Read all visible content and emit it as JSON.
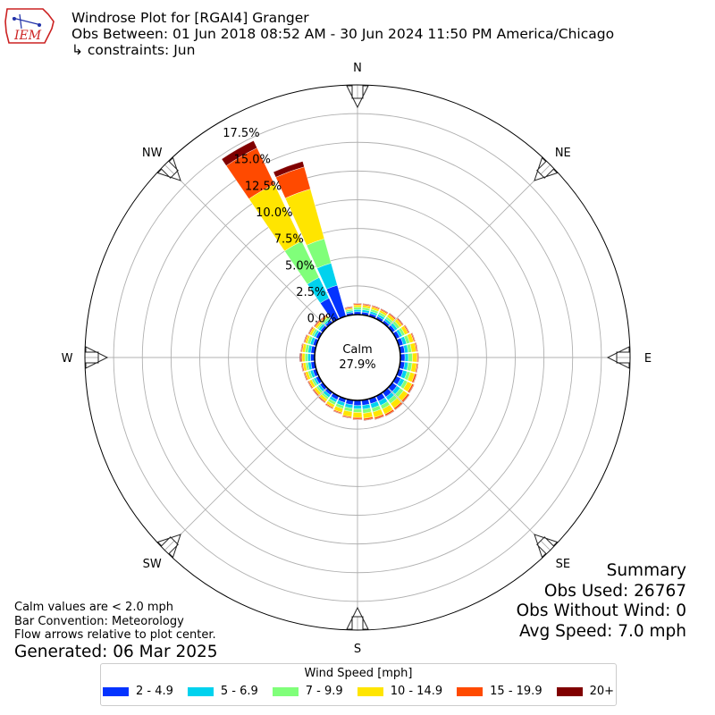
{
  "header": {
    "title_line1": "Windrose Plot for [RGAI4] Granger",
    "title_line2": "Obs Between: 01 Jun 2018 08:52 AM - 30 Jun 2024 11:50 PM America/Chicago",
    "title_line3": "↳ constraints: Jun",
    "logo_text": "IEM"
  },
  "summary": {
    "heading": "Summary",
    "obs_used": "Obs Used: 26767",
    "obs_without_wind": "Obs Without Wind: 0",
    "avg_speed": "Avg Speed: 7.0 mph"
  },
  "notes": {
    "calm_note": "Calm values are < 2.0 mph",
    "bar_convention": "Bar Convention: Meteorology",
    "flow_arrows": "Flow arrows relative to plot center.",
    "generated": "Generated: 06 Mar 2025"
  },
  "legend": {
    "title": "Wind Speed [mph]",
    "items": [
      {
        "label": "2 - 4.9",
        "color": "#0433ff"
      },
      {
        "label": "5 - 6.9",
        "color": "#00d2ee"
      },
      {
        "label": "7 - 9.9",
        "color": "#80ff7a"
      },
      {
        "label": "10 - 14.9",
        "color": "#ffe500"
      },
      {
        "label": "15 - 19.9",
        "color": "#ff4a00"
      },
      {
        "label": "20+",
        "color": "#800000"
      }
    ]
  },
  "chart_data": {
    "type": "windrose",
    "calm": {
      "label": "Calm",
      "value": "27.9%"
    },
    "directions": [
      {
        "label": "N",
        "deg": 0
      },
      {
        "label": "NE",
        "deg": 45
      },
      {
        "label": "E",
        "deg": 90
      },
      {
        "label": "SE",
        "deg": 135
      },
      {
        "label": "S",
        "deg": 180
      },
      {
        "label": "SW",
        "deg": 225
      },
      {
        "label": "W",
        "deg": 270
      },
      {
        "label": "NW",
        "deg": 315
      }
    ],
    "radial_ticks": [
      "0.0%",
      "2.5%",
      "5.0%",
      "7.5%",
      "10.0%",
      "12.5%",
      "15.0%",
      "17.5%"
    ],
    "radial_values": [
      0,
      2.5,
      5,
      7.5,
      10,
      12.5,
      15,
      17.5
    ],
    "rmax": 20,
    "bin_width_deg": 10,
    "bins": [
      "2 - 4.9",
      "5 - 6.9",
      "7 - 9.9",
      "10 - 14.9",
      "15 - 19.9",
      "20+"
    ],
    "colors": [
      "#0433ff",
      "#00d2ee",
      "#80ff7a",
      "#ffe500",
      "#ff4a00",
      "#800000"
    ],
    "sectors": [
      {
        "deg": 0,
        "cum": [
          0.25,
          0.45,
          0.65,
          0.85,
          0.95,
          1.0
        ]
      },
      {
        "deg": 10,
        "cum": [
          0.25,
          0.45,
          0.65,
          0.85,
          0.95,
          1.0
        ]
      },
      {
        "deg": 20,
        "cum": [
          0.25,
          0.45,
          0.65,
          0.85,
          0.95,
          1.0
        ]
      },
      {
        "deg": 30,
        "cum": [
          0.25,
          0.45,
          0.65,
          0.85,
          0.95,
          1.0
        ]
      },
      {
        "deg": 40,
        "cum": [
          0.25,
          0.45,
          0.65,
          0.9,
          1.0,
          1.05
        ]
      },
      {
        "deg": 50,
        "cum": [
          0.3,
          0.55,
          0.8,
          1.05,
          1.15,
          1.2
        ]
      },
      {
        "deg": 60,
        "cum": [
          0.35,
          0.6,
          0.85,
          1.15,
          1.25,
          1.3
        ]
      },
      {
        "deg": 70,
        "cum": [
          0.4,
          0.7,
          1.0,
          1.35,
          1.45,
          1.5
        ]
      },
      {
        "deg": 80,
        "cum": [
          0.4,
          0.7,
          1.0,
          1.4,
          1.5,
          1.55
        ]
      },
      {
        "deg": 90,
        "cum": [
          0.4,
          0.7,
          1.05,
          1.45,
          1.55,
          1.6
        ]
      },
      {
        "deg": 100,
        "cum": [
          0.4,
          0.7,
          1.05,
          1.45,
          1.55,
          1.6
        ]
      },
      {
        "deg": 110,
        "cum": [
          0.4,
          0.75,
          1.05,
          1.45,
          1.6,
          1.65
        ]
      },
      {
        "deg": 120,
        "cum": [
          0.45,
          0.8,
          1.1,
          1.55,
          1.7,
          1.75
        ]
      },
      {
        "deg": 130,
        "cum": [
          0.5,
          0.85,
          1.2,
          1.65,
          1.8,
          1.85
        ]
      },
      {
        "deg": 140,
        "cum": [
          0.5,
          0.85,
          1.2,
          1.7,
          1.85,
          1.9
        ]
      },
      {
        "deg": 150,
        "cum": [
          0.5,
          0.9,
          1.25,
          1.75,
          1.9,
          1.95
        ]
      },
      {
        "deg": 160,
        "cum": [
          0.45,
          0.85,
          1.2,
          1.7,
          1.85,
          1.9
        ]
      },
      {
        "deg": 170,
        "cum": [
          0.45,
          0.8,
          1.15,
          1.6,
          1.75,
          1.8
        ]
      },
      {
        "deg": 180,
        "cum": [
          0.45,
          0.75,
          1.05,
          1.5,
          1.65,
          1.7
        ]
      },
      {
        "deg": 190,
        "cum": [
          0.4,
          0.7,
          1.0,
          1.45,
          1.55,
          1.6
        ]
      },
      {
        "deg": 200,
        "cum": [
          0.35,
          0.65,
          0.9,
          1.25,
          1.35,
          1.4
        ]
      },
      {
        "deg": 210,
        "cum": [
          0.35,
          0.6,
          0.85,
          1.1,
          1.2,
          1.25
        ]
      },
      {
        "deg": 220,
        "cum": [
          0.3,
          0.55,
          0.75,
          1.0,
          1.1,
          1.15
        ]
      },
      {
        "deg": 230,
        "cum": [
          0.3,
          0.5,
          0.7,
          0.95,
          1.05,
          1.1
        ]
      },
      {
        "deg": 240,
        "cum": [
          0.3,
          0.5,
          0.7,
          0.95,
          1.05,
          1.1
        ]
      },
      {
        "deg": 250,
        "cum": [
          0.3,
          0.55,
          0.75,
          1.0,
          1.1,
          1.15
        ]
      },
      {
        "deg": 260,
        "cum": [
          0.35,
          0.6,
          0.8,
          1.05,
          1.15,
          1.2
        ]
      },
      {
        "deg": 270,
        "cum": [
          0.35,
          0.6,
          0.85,
          1.1,
          1.2,
          1.3
        ]
      },
      {
        "deg": 280,
        "cum": [
          0.35,
          0.6,
          0.85,
          1.1,
          1.2,
          1.25
        ]
      },
      {
        "deg": 290,
        "cum": [
          0.3,
          0.55,
          0.8,
          1.0,
          1.1,
          1.15
        ]
      },
      {
        "deg": 300,
        "cum": [
          0.3,
          0.5,
          0.7,
          0.9,
          1.0,
          1.05
        ]
      },
      {
        "deg": 310,
        "cum": [
          0.25,
          0.45,
          0.6,
          0.8,
          0.9,
          0.95
        ]
      },
      {
        "deg": 320,
        "cum": [
          0.25,
          0.4,
          0.6,
          0.75,
          0.85,
          0.9
        ]
      },
      {
        "deg": 330,
        "cum": [
          2.0,
          4.0,
          7.5,
          13.0,
          16.5,
          17.2
        ]
      },
      {
        "deg": 340,
        "cum": [
          2.8,
          4.8,
          7.0,
          11.5,
          13.5,
          14.0
        ]
      },
      {
        "deg": 350,
        "cum": [
          0.2,
          0.35,
          0.5,
          0.6,
          0.7,
          0.75
        ]
      }
    ]
  }
}
